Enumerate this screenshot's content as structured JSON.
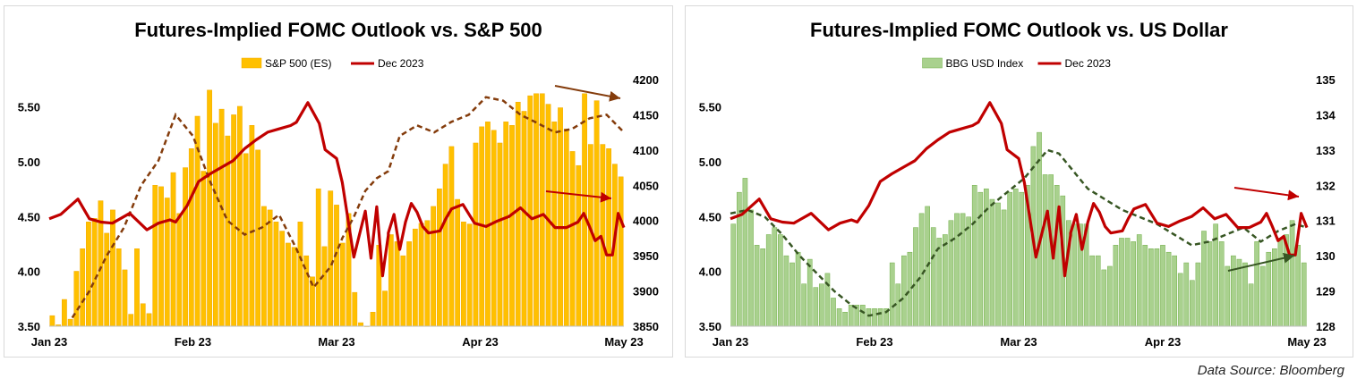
{
  "footer": {
    "source": "Data Source: Bloomberg"
  },
  "chart_data": [
    {
      "type": "bar",
      "title": "Futures-Implied FOMC Outlook vs. S&P 500",
      "legend": {
        "position": "top",
        "entries": [
          "S&P 500 (ES)",
          "Dec 2023"
        ]
      },
      "grid": false,
      "x_tick_labels": [
        "Jan 23",
        "Feb 23",
        "Mar 23",
        "Apr 23",
        "May 23"
      ],
      "y_left": {
        "ticks": [
          "3.50",
          "4.00",
          "4.50",
          "5.00",
          "5.50"
        ],
        "range": [
          3.5,
          5.75
        ]
      },
      "y_right": {
        "ticks": [
          "3850",
          "3900",
          "3950",
          "4000",
          "4050",
          "4100",
          "4150",
          "4200"
        ],
        "range": [
          3850,
          4200
        ]
      },
      "colors": {
        "bars": "#FFC000",
        "bar_edge": "#F2A900",
        "line": "#C00000",
        "moving_avg": "#843C0C",
        "arrow_top": "#843C0C",
        "arrow_mid": "#C00000"
      },
      "bars_axis": "right",
      "bars": [
        3865,
        3852,
        3888,
        3860,
        3928,
        3960,
        3998,
        4003,
        4028,
        3982,
        4015,
        3960,
        3930,
        3867,
        3960,
        3882,
        3868,
        4050,
        4048,
        4032,
        4068,
        4010,
        4075,
        4102,
        4148,
        4070,
        4185,
        4138,
        4158,
        4120,
        4150,
        4162,
        4095,
        4135,
        4100,
        4020,
        4015,
        3998,
        3985,
        3968,
        3962,
        3998,
        3950,
        3920,
        4045,
        3963,
        4042,
        4022,
        3968,
        4010,
        3898,
        3855,
        3850,
        3870,
        3965,
        3900,
        3980,
        3970,
        3950,
        3970,
        3988,
        3996,
        4000,
        4020,
        4045,
        4080,
        4105,
        4030,
        3998,
        3995,
        4110,
        4133,
        4140,
        4128,
        4110,
        4140,
        4135,
        4168,
        4155,
        4177,
        4180,
        4180,
        4165,
        4140,
        4160,
        4130,
        4098,
        4078,
        4180,
        4108,
        4170,
        4108,
        4102,
        4080,
        4062
      ],
      "series": [
        {
          "name": "Dec 2023",
          "axis": "left",
          "x": [
            0,
            0.02,
            0.05,
            0.07,
            0.09,
            0.11,
            0.14,
            0.17,
            0.19,
            0.21,
            0.22,
            0.24,
            0.26,
            0.28,
            0.3,
            0.32,
            0.34,
            0.36,
            0.38,
            0.4,
            0.42,
            0.43,
            0.45,
            0.47,
            0.48,
            0.5,
            0.51,
            0.53,
            0.55,
            0.56,
            0.57,
            0.58,
            0.59,
            0.59,
            0.6,
            0.61,
            0.62,
            0.63,
            0.64,
            0.65,
            0.66,
            0.68,
            0.69,
            0.7,
            0.72,
            0.74,
            0.76,
            0.78,
            0.8,
            0.82,
            0.84,
            0.86,
            0.88,
            0.9,
            0.92,
            0.93,
            0.94,
            0.95,
            0.96,
            0.97,
            0.98,
            0.99,
            1.0
          ],
          "values": [
            4.48,
            4.52,
            4.66,
            4.48,
            4.45,
            4.44,
            4.53,
            4.38,
            4.44,
            4.47,
            4.45,
            4.6,
            4.82,
            4.89,
            4.95,
            5.01,
            5.12,
            5.2,
            5.27,
            5.3,
            5.33,
            5.36,
            5.54,
            5.35,
            5.11,
            5.03,
            4.81,
            4.13,
            4.55,
            4.12,
            4.59,
            3.96,
            4.33,
            4.35,
            4.52,
            4.2,
            4.45,
            4.62,
            4.54,
            4.41,
            4.35,
            4.37,
            4.48,
            4.57,
            4.61,
            4.44,
            4.41,
            4.46,
            4.5,
            4.58,
            4.48,
            4.52,
            4.4,
            4.4,
            4.45,
            4.53,
            4.41,
            4.28,
            4.32,
            4.15,
            4.15,
            4.53,
            4.4
          ]
        },
        {
          "name": "",
          "style": "dashed",
          "axis": "right",
          "x": [
            0.04,
            0.07,
            0.1,
            0.13,
            0.16,
            0.19,
            0.22,
            0.25,
            0.28,
            0.31,
            0.34,
            0.37,
            0.4,
            0.43,
            0.46,
            0.49,
            0.51,
            0.53,
            0.55,
            0.57,
            0.59,
            0.61,
            0.64,
            0.67,
            0.7,
            0.73,
            0.76,
            0.79,
            0.82,
            0.85,
            0.88,
            0.91,
            0.94,
            0.97,
            1.0
          ],
          "values": [
            3862,
            3900,
            3950,
            3990,
            4050,
            4085,
            4150,
            4120,
            4055,
            4000,
            3980,
            3990,
            4008,
            3960,
            3905,
            3935,
            3975,
            4005,
            4042,
            4060,
            4070,
            4120,
            4135,
            4125,
            4140,
            4150,
            4175,
            4170,
            4150,
            4138,
            4125,
            4130,
            4145,
            4150,
            4125
          ]
        }
      ],
      "annotations": [
        {
          "type": "arrow",
          "color": "#843C0C"
        },
        {
          "type": "arrow",
          "color": "#C00000"
        }
      ]
    },
    {
      "type": "bar",
      "title": "Futures-Implied FOMC Outlook vs. US Dollar",
      "legend": {
        "position": "top",
        "entries": [
          "BBG USD Index",
          "Dec 2023"
        ]
      },
      "grid": false,
      "x_tick_labels": [
        "Jan 23",
        "Feb 23",
        "Mar 23",
        "Apr 23",
        "May 23"
      ],
      "y_left": {
        "ticks": [
          "3.50",
          "4.00",
          "4.50",
          "5.00",
          "5.50"
        ],
        "range": [
          3.5,
          5.75
        ]
      },
      "y_right": {
        "ticks": [
          "128",
          "129",
          "130",
          "131",
          "132",
          "133",
          "134",
          "135"
        ],
        "range": [
          128,
          135
        ]
      },
      "colors": {
        "bars": "#A9D18E",
        "bar_edge": "#70AD47",
        "line": "#C00000",
        "moving_avg": "#375623",
        "arrow_top": "#C00000",
        "arrow_mid": "#375623"
      },
      "bars_axis": "right",
      "bars": [
        130.9,
        131.8,
        132.2,
        131.3,
        130.3,
        130.2,
        130.6,
        130.8,
        130.6,
        130.0,
        129.8,
        130.1,
        129.2,
        129.9,
        129.1,
        129.2,
        129.5,
        128.8,
        128.5,
        128.4,
        128.6,
        128.6,
        128.6,
        128.5,
        128.5,
        128.5,
        128.5,
        129.8,
        129.2,
        130.0,
        130.1,
        130.8,
        131.2,
        131.4,
        130.8,
        130.5,
        130.6,
        131.0,
        131.2,
        131.2,
        131.1,
        132.0,
        131.8,
        131.9,
        131.6,
        131.5,
        131.3,
        131.8,
        131.9,
        131.8,
        132.0,
        133.1,
        133.5,
        132.3,
        132.3,
        132.0,
        131.7,
        131.0,
        130.9,
        130.9,
        130.9,
        130.0,
        130.0,
        129.6,
        129.7,
        130.3,
        130.5,
        130.5,
        130.4,
        130.6,
        130.3,
        130.2,
        130.2,
        130.3,
        130.1,
        130.0,
        129.5,
        129.8,
        129.3,
        129.8,
        130.7,
        130.4,
        130.9,
        130.4,
        129.7,
        130.0,
        129.9,
        129.8,
        129.2,
        130.4,
        129.7,
        130.1,
        130.2,
        130.5,
        130.6,
        131.0,
        130.3,
        129.8
      ],
      "series": [
        {
          "name": "Dec 2023",
          "axis": "left",
          "x": [
            0,
            0.02,
            0.05,
            0.07,
            0.09,
            0.11,
            0.14,
            0.17,
            0.19,
            0.21,
            0.22,
            0.24,
            0.26,
            0.28,
            0.3,
            0.32,
            0.34,
            0.36,
            0.38,
            0.4,
            0.42,
            0.43,
            0.45,
            0.47,
            0.48,
            0.5,
            0.51,
            0.53,
            0.55,
            0.56,
            0.57,
            0.58,
            0.59,
            0.59,
            0.6,
            0.61,
            0.62,
            0.63,
            0.64,
            0.65,
            0.66,
            0.68,
            0.69,
            0.7,
            0.72,
            0.74,
            0.76,
            0.78,
            0.8,
            0.82,
            0.84,
            0.86,
            0.88,
            0.9,
            0.92,
            0.93,
            0.94,
            0.95,
            0.96,
            0.97,
            0.98,
            0.99,
            1.0
          ],
          "values": [
            4.48,
            4.52,
            4.66,
            4.48,
            4.45,
            4.44,
            4.53,
            4.38,
            4.44,
            4.47,
            4.45,
            4.6,
            4.82,
            4.89,
            4.95,
            5.01,
            5.12,
            5.2,
            5.27,
            5.3,
            5.33,
            5.36,
            5.54,
            5.35,
            5.11,
            5.03,
            4.81,
            4.13,
            4.55,
            4.12,
            4.59,
            3.96,
            4.33,
            4.35,
            4.52,
            4.2,
            4.45,
            4.62,
            4.54,
            4.41,
            4.35,
            4.37,
            4.48,
            4.57,
            4.61,
            4.44,
            4.41,
            4.46,
            4.5,
            4.58,
            4.48,
            4.52,
            4.4,
            4.4,
            4.45,
            4.53,
            4.41,
            4.28,
            4.32,
            4.15,
            4.15,
            4.53,
            4.4
          ]
        },
        {
          "name": "",
          "style": "dashed",
          "axis": "right",
          "x": [
            0,
            0.03,
            0.06,
            0.09,
            0.12,
            0.15,
            0.18,
            0.21,
            0.24,
            0.27,
            0.3,
            0.33,
            0.36,
            0.39,
            0.42,
            0.45,
            0.48,
            0.51,
            0.53,
            0.55,
            0.57,
            0.59,
            0.62,
            0.65,
            0.68,
            0.71,
            0.74,
            0.77,
            0.8,
            0.83,
            0.86,
            0.89,
            0.92,
            0.95,
            0.98,
            1.0
          ],
          "values": [
            131.2,
            131.3,
            131.1,
            130.6,
            130.0,
            129.5,
            129.0,
            128.6,
            128.3,
            128.4,
            128.8,
            129.4,
            130.2,
            130.5,
            130.9,
            131.4,
            131.8,
            132.2,
            132.6,
            133.0,
            132.9,
            132.5,
            131.9,
            131.6,
            131.3,
            131.1,
            130.9,
            130.6,
            130.3,
            130.4,
            130.6,
            130.8,
            130.4,
            130.7,
            130.9,
            130.8
          ]
        }
      ],
      "annotations": [
        {
          "type": "arrow",
          "color": "#C00000"
        },
        {
          "type": "arrow",
          "color": "#375623"
        }
      ]
    }
  ]
}
